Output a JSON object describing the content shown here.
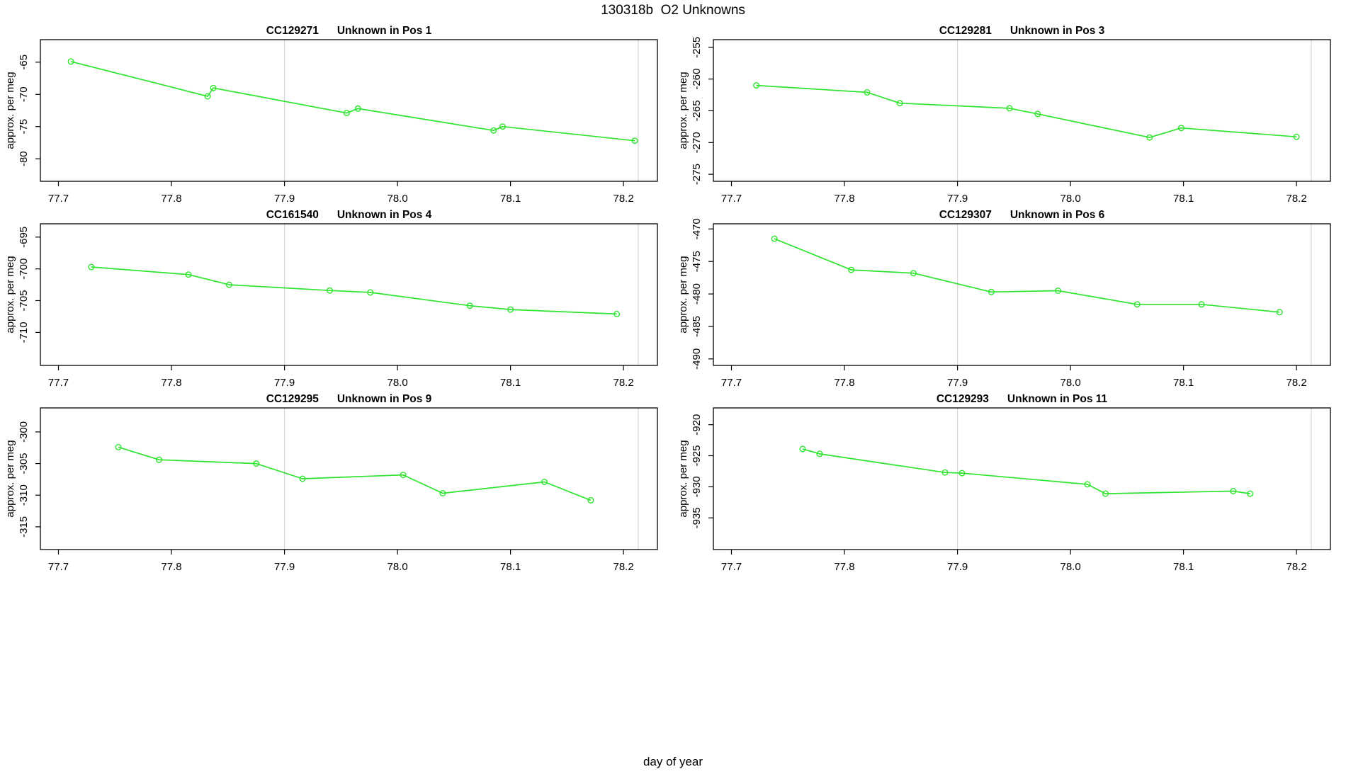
{
  "page": {
    "suptitle": "130318b  O2 Unknowns",
    "xlabel": "day of year"
  },
  "style": {
    "line_color": "#2ee42e",
    "marker": "open-circle",
    "vline_color": "#d4d4d4",
    "axis_color": "#000000",
    "background": "#ffffff"
  },
  "chart_data": [
    {
      "type": "line",
      "sample_id": "CC129271",
      "subtitle": "Unknown in Pos 1",
      "ylabel": "approx. per meg",
      "x": [
        77.711,
        77.832,
        77.837,
        77.955,
        77.965,
        78.085,
        78.093,
        78.21
      ],
      "y": [
        -64.9,
        -70.3,
        -69.0,
        -72.9,
        -72.2,
        -75.6,
        -75.0,
        -77.2
      ],
      "xticks": [
        "77.7",
        "77.8",
        "77.9",
        "78.0",
        "78.1",
        "78.2"
      ],
      "yticks": [
        -65,
        -70,
        -75,
        -80
      ],
      "xlim": [
        77.684,
        78.23
      ],
      "ylim": [
        -83.5,
        -61.5
      ],
      "vlines": [
        77.9,
        78.213
      ],
      "grid": "none",
      "legend": "none"
    },
    {
      "type": "line",
      "sample_id": "CC129281",
      "subtitle": "Unknown in Pos 3",
      "ylabel": "approx. per meg",
      "x": [
        77.722,
        77.82,
        77.849,
        77.946,
        77.971,
        78.07,
        78.098,
        78.2
      ],
      "y": [
        -261.0,
        -262.1,
        -263.8,
        -264.6,
        -265.5,
        -269.2,
        -267.7,
        -269.1
      ],
      "xticks": [
        "77.7",
        "77.8",
        "77.9",
        "78.0",
        "78.1",
        "78.2"
      ],
      "yticks": [
        -255,
        -260,
        -265,
        -270,
        -275
      ],
      "xlim": [
        77.684,
        78.23
      ],
      "ylim": [
        -276.1,
        -253.8
      ],
      "vlines": [
        77.9,
        78.213
      ],
      "grid": "none",
      "legend": "none"
    },
    {
      "type": "line",
      "sample_id": "CC161540",
      "subtitle": "Unknown in Pos 4",
      "ylabel": "approx. per meg",
      "x": [
        77.729,
        77.815,
        77.851,
        77.94,
        77.976,
        78.064,
        78.1,
        78.194
      ],
      "y": [
        -699.7,
        -700.9,
        -702.5,
        -703.4,
        -703.7,
        -705.8,
        -706.4,
        -707.1
      ],
      "xticks": [
        "77.7",
        "77.8",
        "77.9",
        "78.0",
        "78.1",
        "78.2"
      ],
      "yticks": [
        -695,
        -700,
        -705,
        -710
      ],
      "xlim": [
        77.684,
        78.23
      ],
      "ylim": [
        -715.2,
        -692.9
      ],
      "vlines": [
        77.9,
        78.213
      ],
      "grid": "none",
      "legend": "none"
    },
    {
      "type": "line",
      "sample_id": "CC129307",
      "subtitle": "Unknown in Pos 6",
      "ylabel": "approx. per meg",
      "x": [
        77.738,
        77.806,
        77.861,
        77.93,
        77.989,
        78.059,
        78.116,
        78.185
      ],
      "y": [
        -471.5,
        -476.3,
        -476.8,
        -479.7,
        -479.5,
        -481.6,
        -481.6,
        -482.8
      ],
      "xticks": [
        "77.7",
        "77.8",
        "77.9",
        "78.0",
        "78.1",
        "78.2"
      ],
      "yticks": [
        -470,
        -475,
        -480,
        -485,
        -490
      ],
      "xlim": [
        77.684,
        78.23
      ],
      "ylim": [
        -491.0,
        -469.2
      ],
      "vlines": [
        77.9,
        78.213
      ],
      "grid": "none",
      "legend": "none"
    },
    {
      "type": "line",
      "sample_id": "CC129295",
      "subtitle": "Unknown in Pos 9",
      "ylabel": "approx. per meg",
      "x": [
        77.753,
        77.789,
        77.875,
        77.916,
        78.005,
        78.04,
        78.13,
        78.171
      ],
      "y": [
        -302.4,
        -304.4,
        -305.0,
        -307.4,
        -306.8,
        -309.7,
        -307.9,
        -310.8
      ],
      "xticks": [
        "77.7",
        "77.8",
        "77.9",
        "78.0",
        "78.1",
        "78.2"
      ],
      "yticks": [
        -300,
        -305,
        -310,
        -315
      ],
      "xlim": [
        77.684,
        78.23
      ],
      "ylim": [
        -318.6,
        -296.2
      ],
      "vlines": [
        77.9,
        78.213
      ],
      "grid": "none",
      "legend": "none"
    },
    {
      "type": "line",
      "sample_id": "CC129293",
      "subtitle": "Unknown in Pos 11",
      "ylabel": "approx. per meg",
      "x": [
        77.763,
        77.778,
        77.889,
        77.904,
        78.015,
        78.031,
        78.144,
        78.159
      ],
      "y": [
        -923.9,
        -924.7,
        -927.7,
        -927.8,
        -929.6,
        -931.1,
        -930.7,
        -931.1
      ],
      "xticks": [
        "77.7",
        "77.8",
        "77.9",
        "78.0",
        "78.1",
        "78.2"
      ],
      "yticks": [
        -920,
        -925,
        -930,
        -935
      ],
      "xlim": [
        77.684,
        78.23
      ],
      "ylim": [
        -940.1,
        -917.3
      ],
      "vlines": [
        77.9,
        78.213
      ],
      "grid": "none",
      "legend": "none"
    }
  ]
}
